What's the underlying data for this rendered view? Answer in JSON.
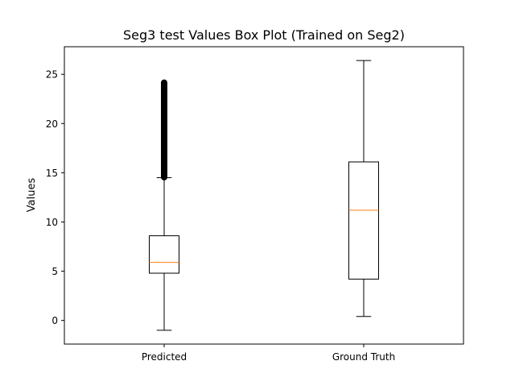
{
  "chart_data": {
    "type": "box",
    "title": "Seg3 test Values Box Plot (Trained on Seg2)",
    "xlabel": "",
    "ylabel": "Values",
    "ylim": [
      -2.4,
      27.8
    ],
    "yticks": [
      0,
      5,
      10,
      15,
      20,
      25
    ],
    "categories": [
      "Predicted",
      "Ground Truth"
    ],
    "grid": false,
    "legend": "none",
    "box_color": "#000000",
    "median_color": "#ff7f0e",
    "boxes": [
      {
        "label": "Predicted",
        "whisker_low": -1.0,
        "q1": 4.8,
        "median": 5.9,
        "q3": 8.6,
        "whisker_high": 14.5,
        "outlier_range": [
          14.5,
          24.2
        ]
      },
      {
        "label": "Ground Truth",
        "whisker_low": 0.4,
        "q1": 4.2,
        "median": 11.2,
        "q3": 16.1,
        "whisker_high": 26.4,
        "outlier_range": null
      }
    ]
  }
}
